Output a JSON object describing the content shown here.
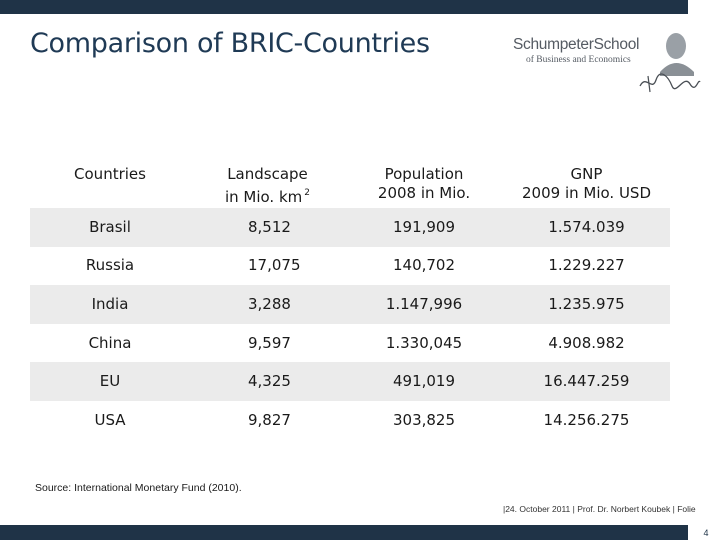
{
  "slide": {
    "title": "Comparison of BRIC-Countries",
    "logo": {
      "name": "SchumpeterSchool",
      "subtitle": "of Business and Economics"
    },
    "source": "Source: International Monetary Fund (2010).",
    "footer": "|24. October 2011 | Prof. Dr. Norbert Koubek | Folie",
    "page_number": "4",
    "colors": {
      "bar": "#1f3347",
      "title": "#1f3a55",
      "row_shade": "#ebebeb"
    }
  },
  "table": {
    "headers": {
      "countries": "Countries",
      "landscape_line1": "Landscape",
      "landscape_line2": "in Mio. km",
      "landscape_sup": "2",
      "population_line1": "Population",
      "population_line2": "2008 in Mio.",
      "gnp_line1": "GNP",
      "gnp_line2": "2009 in Mio. USD"
    },
    "rows": [
      {
        "country": "Brasil",
        "landscape": "8,512",
        "population": "191,909",
        "gnp": "1.574.039"
      },
      {
        "country": "Russia",
        "landscape": "17,075",
        "population": "140,702",
        "gnp": "1.229.227"
      },
      {
        "country": "India",
        "landscape": "3,288",
        "population": "1.147,996",
        "gnp": "1.235.975"
      },
      {
        "country": "China",
        "landscape": "9,597",
        "population": "1.330,045",
        "gnp": "4.908.982"
      },
      {
        "country": "EU",
        "landscape": "4,325",
        "population": "491,019",
        "gnp": "16.447.259"
      },
      {
        "country": "USA",
        "landscape": "9,827",
        "population": "303,825",
        "gnp": "14.256.275"
      }
    ]
  }
}
